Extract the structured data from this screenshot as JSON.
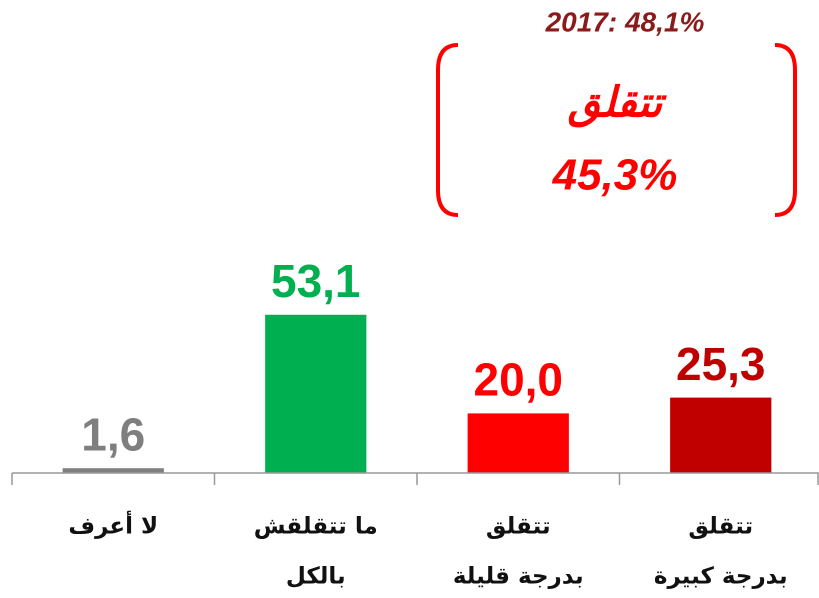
{
  "chart_data": {
    "type": "bar",
    "categories": [
      [
        "لا أعرف"
      ],
      [
        "ما تتقلقش",
        "بالكل"
      ],
      [
        "تتقلق",
        "بدرجة قليلة"
      ],
      [
        "تتقلق",
        "بدرجة كبيرة"
      ]
    ],
    "values": [
      1.6,
      53.1,
      20.0,
      25.3
    ],
    "value_labels": [
      "1,6",
      "53,1",
      "20,0",
      "25,3"
    ],
    "colors": [
      "#7f7f7f",
      "#00b050",
      "#ff0000",
      "#c00000"
    ],
    "label_colors": [
      "#7f7f7f",
      "#00b050",
      "#ff0000",
      "#c00000"
    ],
    "ylim": [
      0,
      100
    ],
    "annotations": {
      "previous": "2017: 48,1%",
      "group_label": "تتقلق",
      "group_value": "45,3%"
    }
  }
}
